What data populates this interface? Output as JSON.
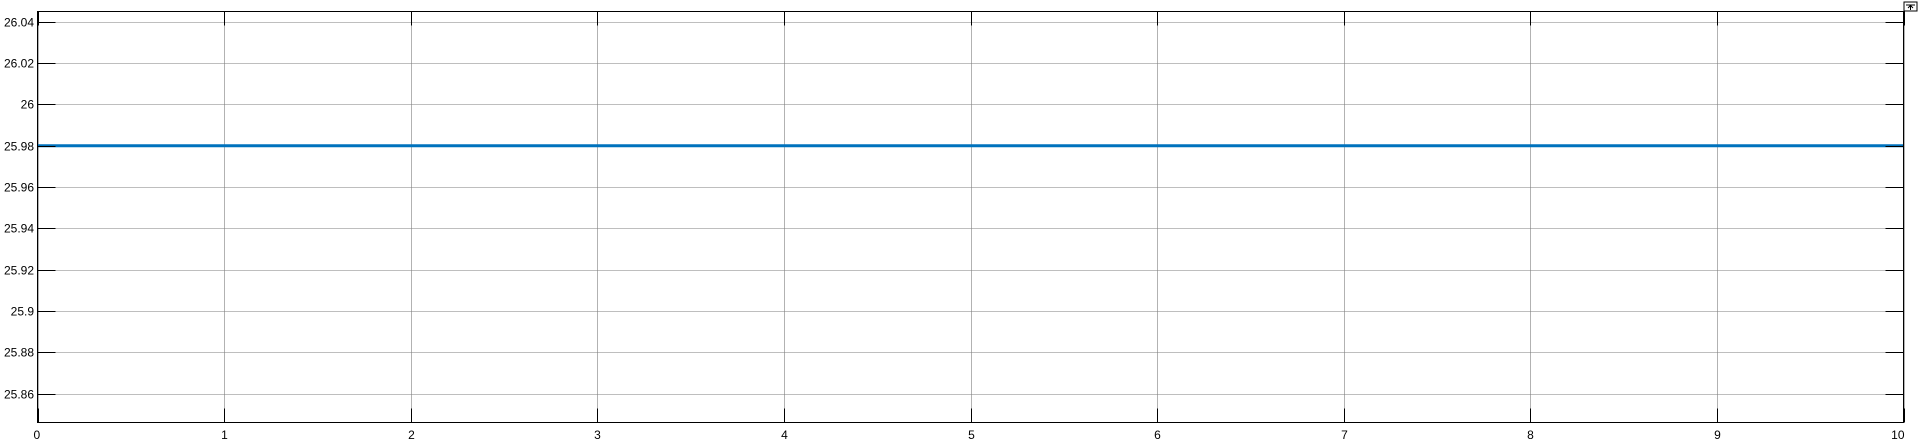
{
  "colors": {
    "background": "#ffffff",
    "axes": "#000000",
    "grid": "#7f7f7f",
    "line": "#0072bd"
  },
  "toolbar": {
    "restore_icon": "restore-view-icon"
  },
  "chart_data": {
    "type": "line",
    "title": "",
    "xlabel": "",
    "ylabel": "",
    "xlim": [
      0,
      10
    ],
    "ylim": [
      25.846,
      26.045
    ],
    "grid": true,
    "x_ticks": [
      0,
      1,
      2,
      3,
      4,
      5,
      6,
      7,
      8,
      9,
      10
    ],
    "x_tick_labels": [
      "0",
      "1",
      "2",
      "3",
      "4",
      "5",
      "6",
      "7",
      "8",
      "9",
      "10"
    ],
    "y_ticks": [
      25.86,
      25.88,
      25.9,
      25.92,
      25.94,
      25.96,
      25.98,
      26,
      26.02,
      26.04
    ],
    "y_tick_labels": [
      "25.86",
      "25.88",
      "25.9",
      "25.92",
      "25.94",
      "25.96",
      "25.98",
      "26",
      "26.02",
      "26.04"
    ],
    "series": [
      {
        "color": "#0072bd",
        "x": [
          0,
          10
        ],
        "y": [
          25.98,
          25.98
        ]
      }
    ]
  }
}
